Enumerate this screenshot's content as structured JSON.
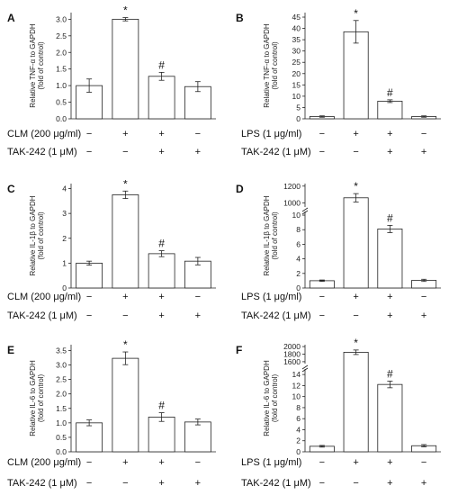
{
  "chart_data": [
    {
      "panel": "A",
      "type": "bar",
      "ylabel": [
        "Relative TNF-α to GAPDH",
        "(fold of control)"
      ],
      "ylim": [
        0,
        3.2
      ],
      "yticks": [
        "0.0",
        "0.5",
        "1.0",
        "1.5",
        "2.0",
        "2.5",
        "3.0"
      ],
      "ytick_values": [
        0,
        0.5,
        1.0,
        1.5,
        2.0,
        2.5,
        3.0
      ],
      "values": [
        1.0,
        3.0,
        1.28,
        0.97
      ],
      "errors": [
        0.2,
        0.05,
        0.12,
        0.15
      ],
      "annotations": [
        "",
        "*",
        "#",
        ""
      ],
      "conditions": [
        {
          "label": "CLM (200 μg/ml)",
          "signs": [
            "−",
            "+",
            "+",
            "−"
          ]
        },
        {
          "label": "TAK-242 (1 μM)",
          "signs": [
            "−",
            "−",
            "+",
            "+"
          ]
        }
      ]
    },
    {
      "panel": "B",
      "type": "bar",
      "ylabel": [
        "Relative TNF-α to GAPDH",
        "(fold of control)"
      ],
      "ylim": [
        0,
        47
      ],
      "yticks": [
        "0",
        "5",
        "10",
        "15",
        "20",
        "25",
        "30",
        "35",
        "40",
        "45"
      ],
      "ytick_values": [
        0,
        5,
        10,
        15,
        20,
        25,
        30,
        35,
        40,
        45
      ],
      "values": [
        1.0,
        38.5,
        7.8,
        1.0
      ],
      "errors": [
        0.3,
        5.0,
        0.6,
        0.3
      ],
      "annotations": [
        "",
        "*",
        "#",
        ""
      ],
      "conditions": [
        {
          "label": "LPS (1 μg/ml)",
          "signs": [
            "−",
            "+",
            "+",
            "−"
          ]
        },
        {
          "label": "TAK-242 (1 μM)",
          "signs": [
            "−",
            "−",
            "+",
            "+"
          ]
        }
      ]
    },
    {
      "panel": "C",
      "type": "bar",
      "ylabel": [
        "Relative IL-1β to GAPDH",
        "(fold of control)"
      ],
      "ylim": [
        0,
        4.2
      ],
      "yticks": [
        "0",
        "1",
        "2",
        "3",
        "4"
      ],
      "ytick_values": [
        0,
        1,
        2,
        3,
        4
      ],
      "values": [
        1.0,
        3.75,
        1.38,
        1.08
      ],
      "errors": [
        0.08,
        0.15,
        0.12,
        0.15
      ],
      "annotations": [
        "",
        "*",
        "#",
        ""
      ],
      "conditions": [
        {
          "label": "CLM (200 μg/ml)",
          "signs": [
            "−",
            "+",
            "+",
            "−"
          ]
        },
        {
          "label": "TAK-242 (1 μM)",
          "signs": [
            "−",
            "−",
            "+",
            "+"
          ]
        }
      ]
    },
    {
      "panel": "D",
      "type": "bar",
      "axis_break": true,
      "ylabel": [
        "Relative IL-1β to GAPDH",
        "(fold of control)"
      ],
      "yticks": [
        "0",
        "2",
        "4",
        "6",
        "8",
        "10",
        "1000",
        "1200"
      ],
      "ytick_values": [
        0,
        2,
        4,
        6,
        8,
        10,
        1000,
        1200
      ],
      "values": [
        1.0,
        1060,
        8.1,
        1.05
      ],
      "errors": [
        0.1,
        50,
        0.5,
        0.15
      ],
      "annotations": [
        "",
        "*",
        "#",
        ""
      ],
      "conditions": [
        {
          "label": "LPS (1 μg/ml)",
          "signs": [
            "−",
            "+",
            "+",
            "−"
          ]
        },
        {
          "label": "TAK-242 (1 μM)",
          "signs": [
            "−",
            "−",
            "+",
            "+"
          ]
        }
      ]
    },
    {
      "panel": "E",
      "type": "bar",
      "ylabel": [
        "Relative IL-6 to GAPDH",
        "(fold of control)"
      ],
      "ylim": [
        0,
        3.7
      ],
      "yticks": [
        "0.0",
        "0.5",
        "1.0",
        "1.5",
        "2.0",
        "2.5",
        "3.0",
        "3.5"
      ],
      "ytick_values": [
        0,
        0.5,
        1.0,
        1.5,
        2.0,
        2.5,
        3.0,
        3.5
      ],
      "values": [
        1.0,
        3.23,
        1.2,
        1.03
      ],
      "errors": [
        0.1,
        0.22,
        0.15,
        0.1
      ],
      "annotations": [
        "",
        "*",
        "#",
        ""
      ],
      "conditions": [
        {
          "label": "CLM (200 μg/ml)",
          "signs": [
            "−",
            "+",
            "+",
            "−"
          ]
        },
        {
          "label": "TAK-242 (1 μM)",
          "signs": [
            "−",
            "−",
            "+",
            "+"
          ]
        }
      ]
    },
    {
      "panel": "F",
      "type": "bar",
      "axis_break": true,
      "ylabel": [
        "Relative IL-6 to GAPDH",
        "(fold of control)"
      ],
      "yticks": [
        "0",
        "2",
        "4",
        "6",
        "8",
        "10",
        "12",
        "14",
        "1600",
        "1800",
        "2000"
      ],
      "ytick_values": [
        0,
        2,
        4,
        6,
        8,
        10,
        12,
        14,
        1600,
        1800,
        2000
      ],
      "values": [
        1.0,
        1850,
        12.2,
        1.1
      ],
      "errors": [
        0.15,
        60,
        0.6,
        0.2
      ],
      "annotations": [
        "",
        "*",
        "#",
        ""
      ],
      "conditions": [
        {
          "label": "LPS (1 μg/ml)",
          "signs": [
            "−",
            "+",
            "+",
            "−"
          ]
        },
        {
          "label": "TAK-242 (1 μM)",
          "signs": [
            "−",
            "−",
            "+",
            "+"
          ]
        }
      ]
    }
  ]
}
